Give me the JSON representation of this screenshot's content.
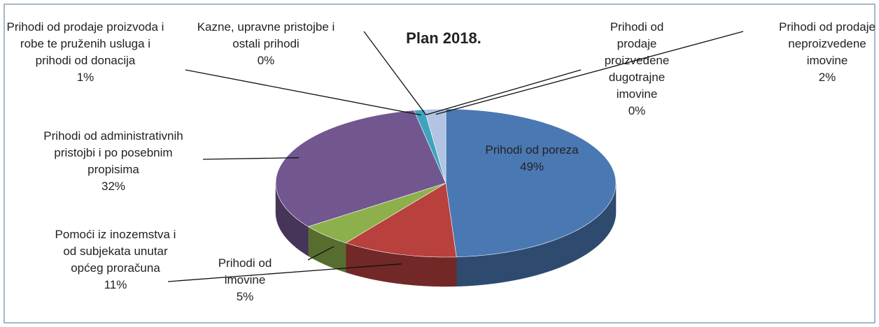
{
  "chart_data": {
    "type": "pie3d",
    "title": "Plan 2018.",
    "categories": [
      "Prihodi od poreza",
      "Pomoći iz inozemstva i od subjekata unutar općeg proračuna",
      "Prihodi od imovine",
      "Prihodi od administrativnih pristojbi i po posebnim propisima",
      "Prihodi od prodaje proizvoda i robe te pruženih usluga i prihodi od donacija",
      "Kazne, upravne pristojbe i ostali prihodi",
      "Prihodi od prodaje proizvedene dugotrajne imovine",
      "Prihodi od prodaje neproizvedene imovine"
    ],
    "values": [
      49,
      11,
      5,
      32,
      1,
      0,
      0,
      2
    ],
    "value_labels": [
      "49%",
      "11%",
      "5%",
      "32%",
      "1%",
      "0%",
      "0%",
      "2%"
    ],
    "colors": [
      "#4a78b3",
      "#b8403d",
      "#8db04c",
      "#725690",
      "#3ea4be",
      "#f08a2f",
      "#8ea9d8",
      "#b2c3e3"
    ]
  }
}
